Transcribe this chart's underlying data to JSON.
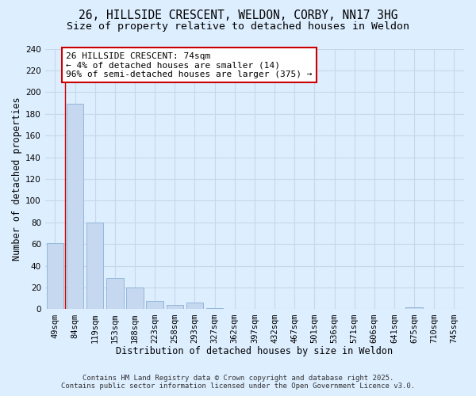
{
  "title_line1": "26, HILLSIDE CRESCENT, WELDON, CORBY, NN17 3HG",
  "title_line2": "Size of property relative to detached houses in Weldon",
  "xlabel": "Distribution of detached houses by size in Weldon",
  "ylabel": "Number of detached properties",
  "categories": [
    "49sqm",
    "84sqm",
    "119sqm",
    "153sqm",
    "188sqm",
    "223sqm",
    "258sqm",
    "293sqm",
    "327sqm",
    "362sqm",
    "397sqm",
    "432sqm",
    "467sqm",
    "501sqm",
    "536sqm",
    "571sqm",
    "606sqm",
    "641sqm",
    "675sqm",
    "710sqm",
    "745sqm"
  ],
  "values": [
    61,
    189,
    80,
    29,
    20,
    8,
    4,
    6,
    1,
    0,
    0,
    0,
    0,
    0,
    0,
    0,
    0,
    0,
    2,
    0,
    0
  ],
  "bar_color": "#c5d8ef",
  "bar_edge_color": "#8ab0d4",
  "annotation_box_text": "26 HILLSIDE CRESCENT: 74sqm\n← 4% of detached houses are smaller (14)\n96% of semi-detached houses are larger (375) →",
  "annotation_box_color": "#ffffff",
  "annotation_box_edge_color": "#cc0000",
  "vline_color": "#cc0000",
  "ylim": [
    0,
    240
  ],
  "yticks": [
    0,
    20,
    40,
    60,
    80,
    100,
    120,
    140,
    160,
    180,
    200,
    220,
    240
  ],
  "grid_color": "#c8d8e8",
  "background_color": "#ddeeff",
  "footer_line1": "Contains HM Land Registry data © Crown copyright and database right 2025.",
  "footer_line2": "Contains public sector information licensed under the Open Government Licence v3.0.",
  "title_fontsize": 10.5,
  "subtitle_fontsize": 9.5,
  "axis_label_fontsize": 8.5,
  "tick_fontsize": 7.5,
  "annotation_fontsize": 8,
  "footer_fontsize": 6.5
}
